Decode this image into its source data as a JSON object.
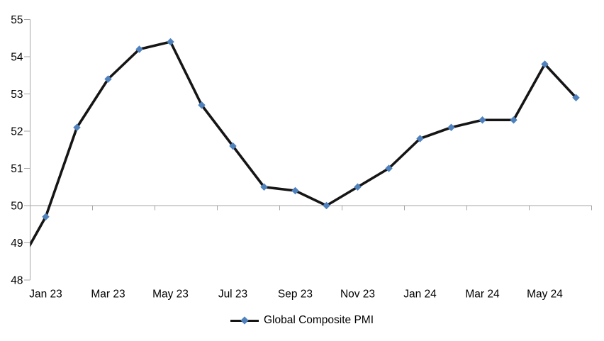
{
  "chart_data": {
    "type": "line",
    "title": "",
    "xlabel": "",
    "ylabel": "",
    "series": [
      {
        "name": "Global Composite PMI",
        "x": [
          "Dec 22",
          "Jan 23",
          "Feb 23",
          "Mar 23",
          "Apr 23",
          "May 23",
          "Jun 23",
          "Jul 23",
          "Aug 23",
          "Sep 23",
          "Oct 23",
          "Nov 23",
          "Dec 23",
          "Jan 24",
          "Feb 24",
          "Mar 24",
          "Apr 24",
          "May 24",
          "Jun 24"
        ],
        "values": [
          48.2,
          49.7,
          52.1,
          53.4,
          54.2,
          54.4,
          52.7,
          51.6,
          50.5,
          50.4,
          50.0,
          50.5,
          51.0,
          51.8,
          52.1,
          52.3,
          52.3,
          53.8,
          52.9
        ]
      }
    ],
    "first_point_clipped_at_left_edge": true,
    "ylim": [
      48,
      55
    ],
    "y_tick_step": 1,
    "y_tick_labels": [
      "55",
      "54",
      "53",
      "52",
      "51",
      "50",
      "49",
      "48"
    ],
    "x_tick_labels": [
      {
        "index": 1,
        "label": "Jan 23"
      },
      {
        "index": 3,
        "label": "Mar 23"
      },
      {
        "index": 5,
        "label": "May 23"
      },
      {
        "index": 7,
        "label": "Jul 23"
      },
      {
        "index": 9,
        "label": "Sep 23"
      },
      {
        "index": 11,
        "label": "Nov 23"
      },
      {
        "index": 13,
        "label": "Jan 24"
      },
      {
        "index": 15,
        "label": "Mar 24"
      },
      {
        "index": 17,
        "label": "May 24"
      }
    ],
    "x_axis_crosses_at": 50,
    "grid": "off",
    "legend_position": "bottom-center",
    "marker_shape": "diamond",
    "colors": {
      "line": "#151515",
      "marker": "#4f81bd",
      "axis": "#a6a6a6",
      "text": "#000000"
    }
  },
  "legend": {
    "label": "Global Composite PMI"
  }
}
